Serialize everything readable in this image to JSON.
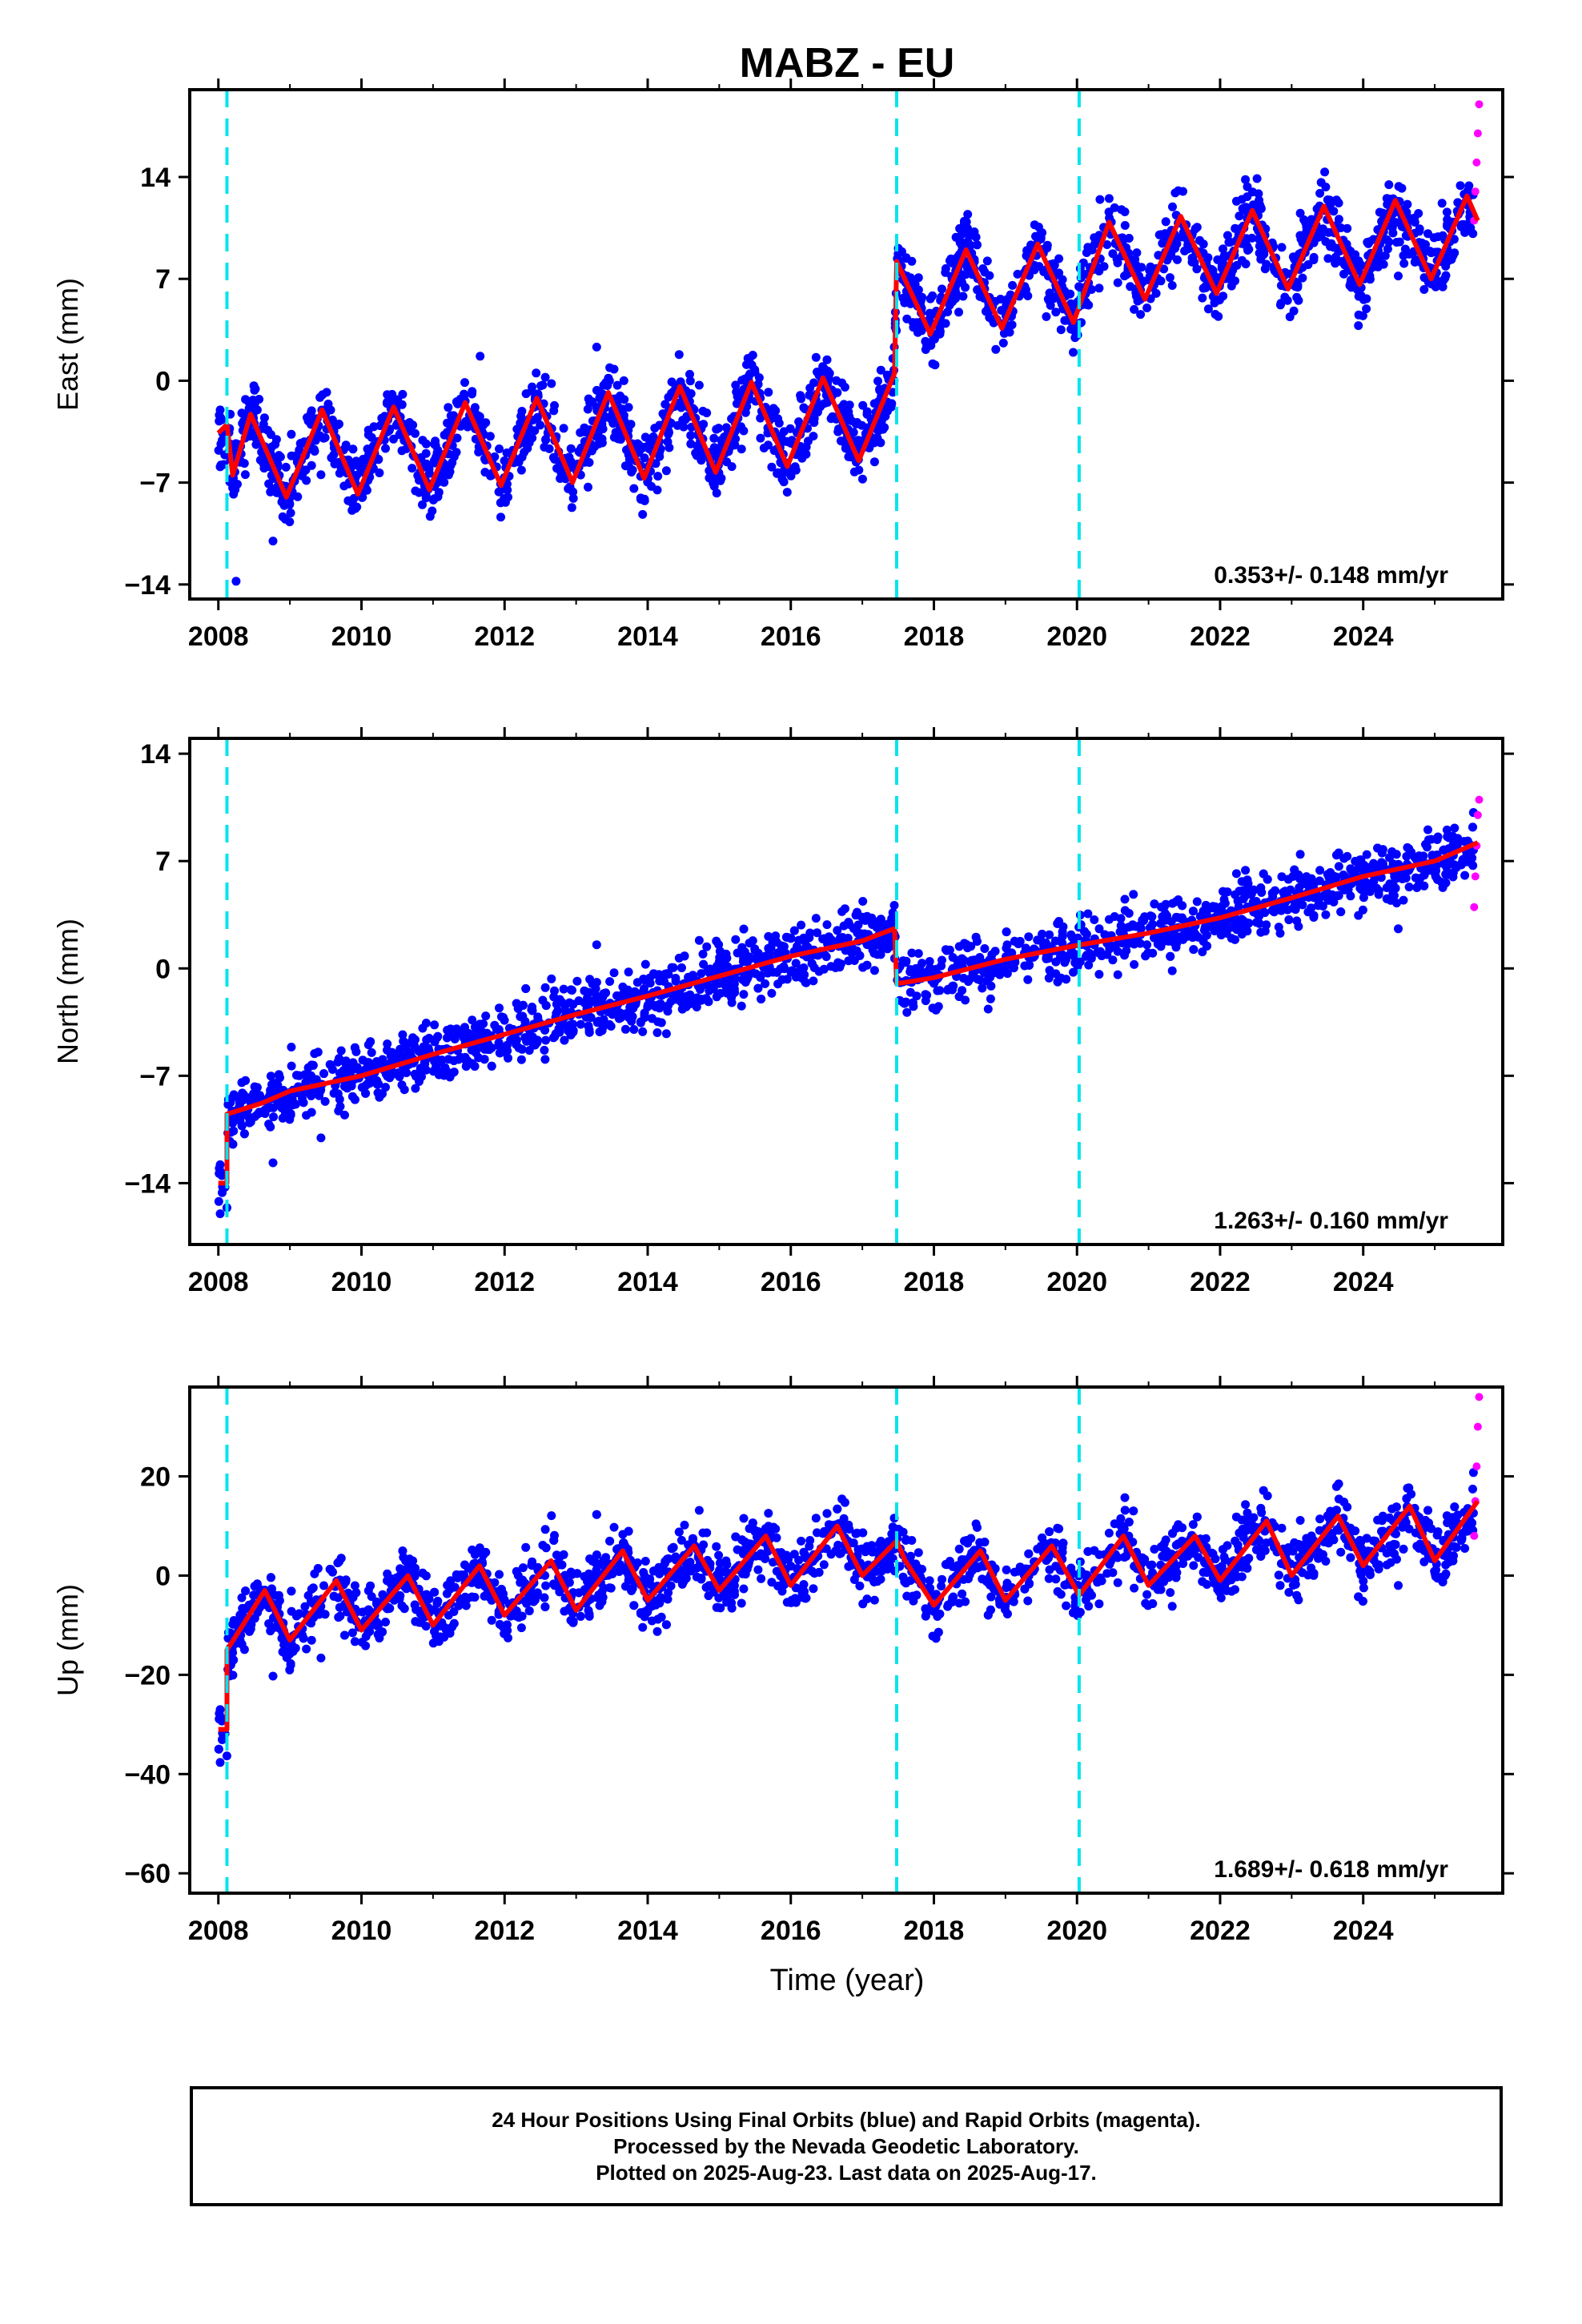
{
  "title": "MABZ - EU",
  "footer": {
    "line1": "24 Hour Positions Using Final Orbits (blue) and Rapid Orbits (magenta).",
    "line2": "Processed by the Nevada Geodetic Laboratory.",
    "line3": "Plotted on 2025-Aug-23. Last data on 2025-Aug-17."
  },
  "colors": {
    "final_orbits": "#0000ff",
    "rapid_orbits": "#ff00ff",
    "model": "#ff0000",
    "event_lines": "#00e5ee"
  },
  "chart_data": [
    {
      "type": "scatter",
      "ylabel": "East (mm)",
      "xlim": [
        2007.6,
        2025.95
      ],
      "ylim": [
        -15,
        20
      ],
      "x_ticks": [
        2008,
        2010,
        2012,
        2014,
        2016,
        2018,
        2020,
        2022,
        2024
      ],
      "y_ticks": [
        -14,
        -7,
        0,
        7,
        14
      ],
      "event_lines": [
        2008.12,
        2017.48,
        2020.03
      ],
      "rate_label": "0.353+/- 0.148 mm/yr",
      "grid": false,
      "model": {
        "description": "trend + annual/semiannual seasonal with offsets",
        "steps": [
          {
            "x": 2017.48,
            "before": 0.5,
            "after": 8.2
          }
        ],
        "points": [
          [
            2008.0,
            -3.6
          ],
          [
            2008.12,
            -3.0
          ],
          [
            2008.2,
            -6.5
          ],
          [
            2008.45,
            -2.3
          ],
          [
            2008.95,
            -8.0
          ],
          [
            2009.45,
            -2.0
          ],
          [
            2009.95,
            -7.8
          ],
          [
            2010.45,
            -1.8
          ],
          [
            2010.95,
            -7.5
          ],
          [
            2011.45,
            -1.5
          ],
          [
            2011.95,
            -7.2
          ],
          [
            2012.45,
            -1.2
          ],
          [
            2012.95,
            -7.0
          ],
          [
            2013.45,
            -0.8
          ],
          [
            2013.95,
            -6.7
          ],
          [
            2014.45,
            -0.4
          ],
          [
            2014.95,
            -6.3
          ],
          [
            2015.45,
            -0.1
          ],
          [
            2015.95,
            -5.9
          ],
          [
            2016.45,
            0.2
          ],
          [
            2016.95,
            -5.5
          ],
          [
            2017.45,
            0.5
          ],
          [
            2017.48,
            8.2
          ],
          [
            2017.95,
            3.2
          ],
          [
            2018.45,
            9.0
          ],
          [
            2018.95,
            3.6
          ],
          [
            2019.45,
            9.4
          ],
          [
            2019.95,
            4.0
          ],
          [
            2020.45,
            10.9
          ],
          [
            2020.95,
            5.6
          ],
          [
            2021.45,
            11.3
          ],
          [
            2021.95,
            6.0
          ],
          [
            2022.45,
            11.7
          ],
          [
            2022.95,
            6.3
          ],
          [
            2023.45,
            12.0
          ],
          [
            2023.95,
            6.6
          ],
          [
            2024.45,
            12.4
          ],
          [
            2024.95,
            7.0
          ],
          [
            2025.45,
            12.7
          ],
          [
            2025.6,
            11.0
          ]
        ]
      },
      "series": [
        {
          "name": "Final Orbits",
          "x_range": [
            2008.0,
            2025.55
          ],
          "scatter_mm": 2.2
        },
        {
          "name": "Rapid Orbits",
          "x_range": [
            2025.55,
            2025.62
          ],
          "values_approx": [
            11,
            13,
            15,
            17,
            19
          ]
        }
      ]
    },
    {
      "type": "scatter",
      "ylabel": "North (mm)",
      "xlim": [
        2007.6,
        2025.95
      ],
      "ylim": [
        -18,
        15
      ],
      "x_ticks": [
        2008,
        2010,
        2012,
        2014,
        2016,
        2018,
        2020,
        2022,
        2024
      ],
      "y_ticks": [
        -14,
        -7,
        0,
        7,
        14
      ],
      "event_lines": [
        2008.12,
        2017.48,
        2020.03
      ],
      "rate_label": "1.263+/- 0.160 mm/yr",
      "grid": false,
      "model": {
        "description": "trend + annual/semiannual seasonal with offsets",
        "steps": [
          {
            "x": 2008.12,
            "before": -14.0,
            "after": -9.5
          },
          {
            "x": 2017.48,
            "before": 2.5,
            "after": -1.0
          }
        ],
        "points": [
          [
            2008.0,
            -14.0
          ],
          [
            2008.12,
            -14.0
          ],
          [
            2008.12,
            -9.5
          ],
          [
            2008.6,
            -8.8
          ],
          [
            2009.0,
            -8.0
          ],
          [
            2010.0,
            -7.0
          ],
          [
            2011.0,
            -5.6
          ],
          [
            2012.0,
            -4.3
          ],
          [
            2013.0,
            -3.0
          ],
          [
            2014.0,
            -1.8
          ],
          [
            2015.0,
            -0.5
          ],
          [
            2016.0,
            0.8
          ],
          [
            2017.0,
            1.8
          ],
          [
            2017.45,
            2.6
          ],
          [
            2017.48,
            -1.0
          ],
          [
            2018.0,
            -0.6
          ],
          [
            2019.0,
            0.6
          ],
          [
            2020.0,
            1.5
          ],
          [
            2021.0,
            2.3
          ],
          [
            2022.0,
            3.3
          ],
          [
            2023.0,
            4.6
          ],
          [
            2024.0,
            6.0
          ],
          [
            2025.0,
            7.0
          ],
          [
            2025.6,
            8.2
          ]
        ]
      },
      "series": [
        {
          "name": "Final Orbits",
          "x_range": [
            2008.0,
            2025.55
          ],
          "scatter_mm": 1.8
        },
        {
          "name": "Rapid Orbits",
          "x_range": [
            2025.55,
            2025.62
          ],
          "values_approx": [
            4,
            6,
            8,
            10,
            11
          ]
        }
      ]
    },
    {
      "type": "scatter",
      "ylabel": "Up (mm)",
      "xlim": [
        2007.6,
        2025.95
      ],
      "ylim": [
        -64,
        38
      ],
      "x_ticks": [
        2008,
        2010,
        2012,
        2014,
        2016,
        2018,
        2020,
        2022,
        2024
      ],
      "y_ticks": [
        -60,
        -40,
        -20,
        0,
        20
      ],
      "event_lines": [
        2008.12,
        2017.48,
        2020.03
      ],
      "rate_label": "1.689+/- 0.618 mm/yr",
      "grid": false,
      "model": {
        "description": "trend + annual/semiannual seasonal with offsets",
        "steps": [
          {
            "x": 2008.12,
            "before": -31,
            "after": -15
          }
        ],
        "points": [
          [
            2008.0,
            -31
          ],
          [
            2008.12,
            -31
          ],
          [
            2008.12,
            -15
          ],
          [
            2008.65,
            -3
          ],
          [
            2009.0,
            -13
          ],
          [
            2009.65,
            -1
          ],
          [
            2010.0,
            -11
          ],
          [
            2010.65,
            0
          ],
          [
            2011.0,
            -10
          ],
          [
            2011.65,
            2
          ],
          [
            2012.0,
            -8
          ],
          [
            2012.65,
            3
          ],
          [
            2013.0,
            -7
          ],
          [
            2013.65,
            5
          ],
          [
            2014.0,
            -5
          ],
          [
            2014.65,
            6
          ],
          [
            2015.0,
            -3
          ],
          [
            2015.65,
            8
          ],
          [
            2016.0,
            -2
          ],
          [
            2016.65,
            10
          ],
          [
            2017.0,
            0
          ],
          [
            2017.48,
            7
          ],
          [
            2017.6,
            3
          ],
          [
            2018.0,
            -6
          ],
          [
            2018.65,
            5
          ],
          [
            2019.0,
            -5
          ],
          [
            2019.65,
            6
          ],
          [
            2020.03,
            -4
          ],
          [
            2020.65,
            8
          ],
          [
            2021.0,
            -2
          ],
          [
            2021.65,
            8
          ],
          [
            2022.0,
            -1
          ],
          [
            2022.65,
            11
          ],
          [
            2023.0,
            0
          ],
          [
            2023.65,
            12
          ],
          [
            2024.0,
            2
          ],
          [
            2024.65,
            14
          ],
          [
            2025.0,
            3
          ],
          [
            2025.6,
            15
          ]
        ]
      },
      "series": [
        {
          "name": "Final Orbits",
          "x_range": [
            2008.0,
            2025.55
          ],
          "scatter_mm": 6.0
        },
        {
          "name": "Rapid Orbits",
          "x_range": [
            2025.55,
            2025.62
          ],
          "values_approx": [
            8,
            15,
            22,
            30,
            36
          ]
        }
      ]
    }
  ],
  "shared_xlabel": "Time (year)"
}
